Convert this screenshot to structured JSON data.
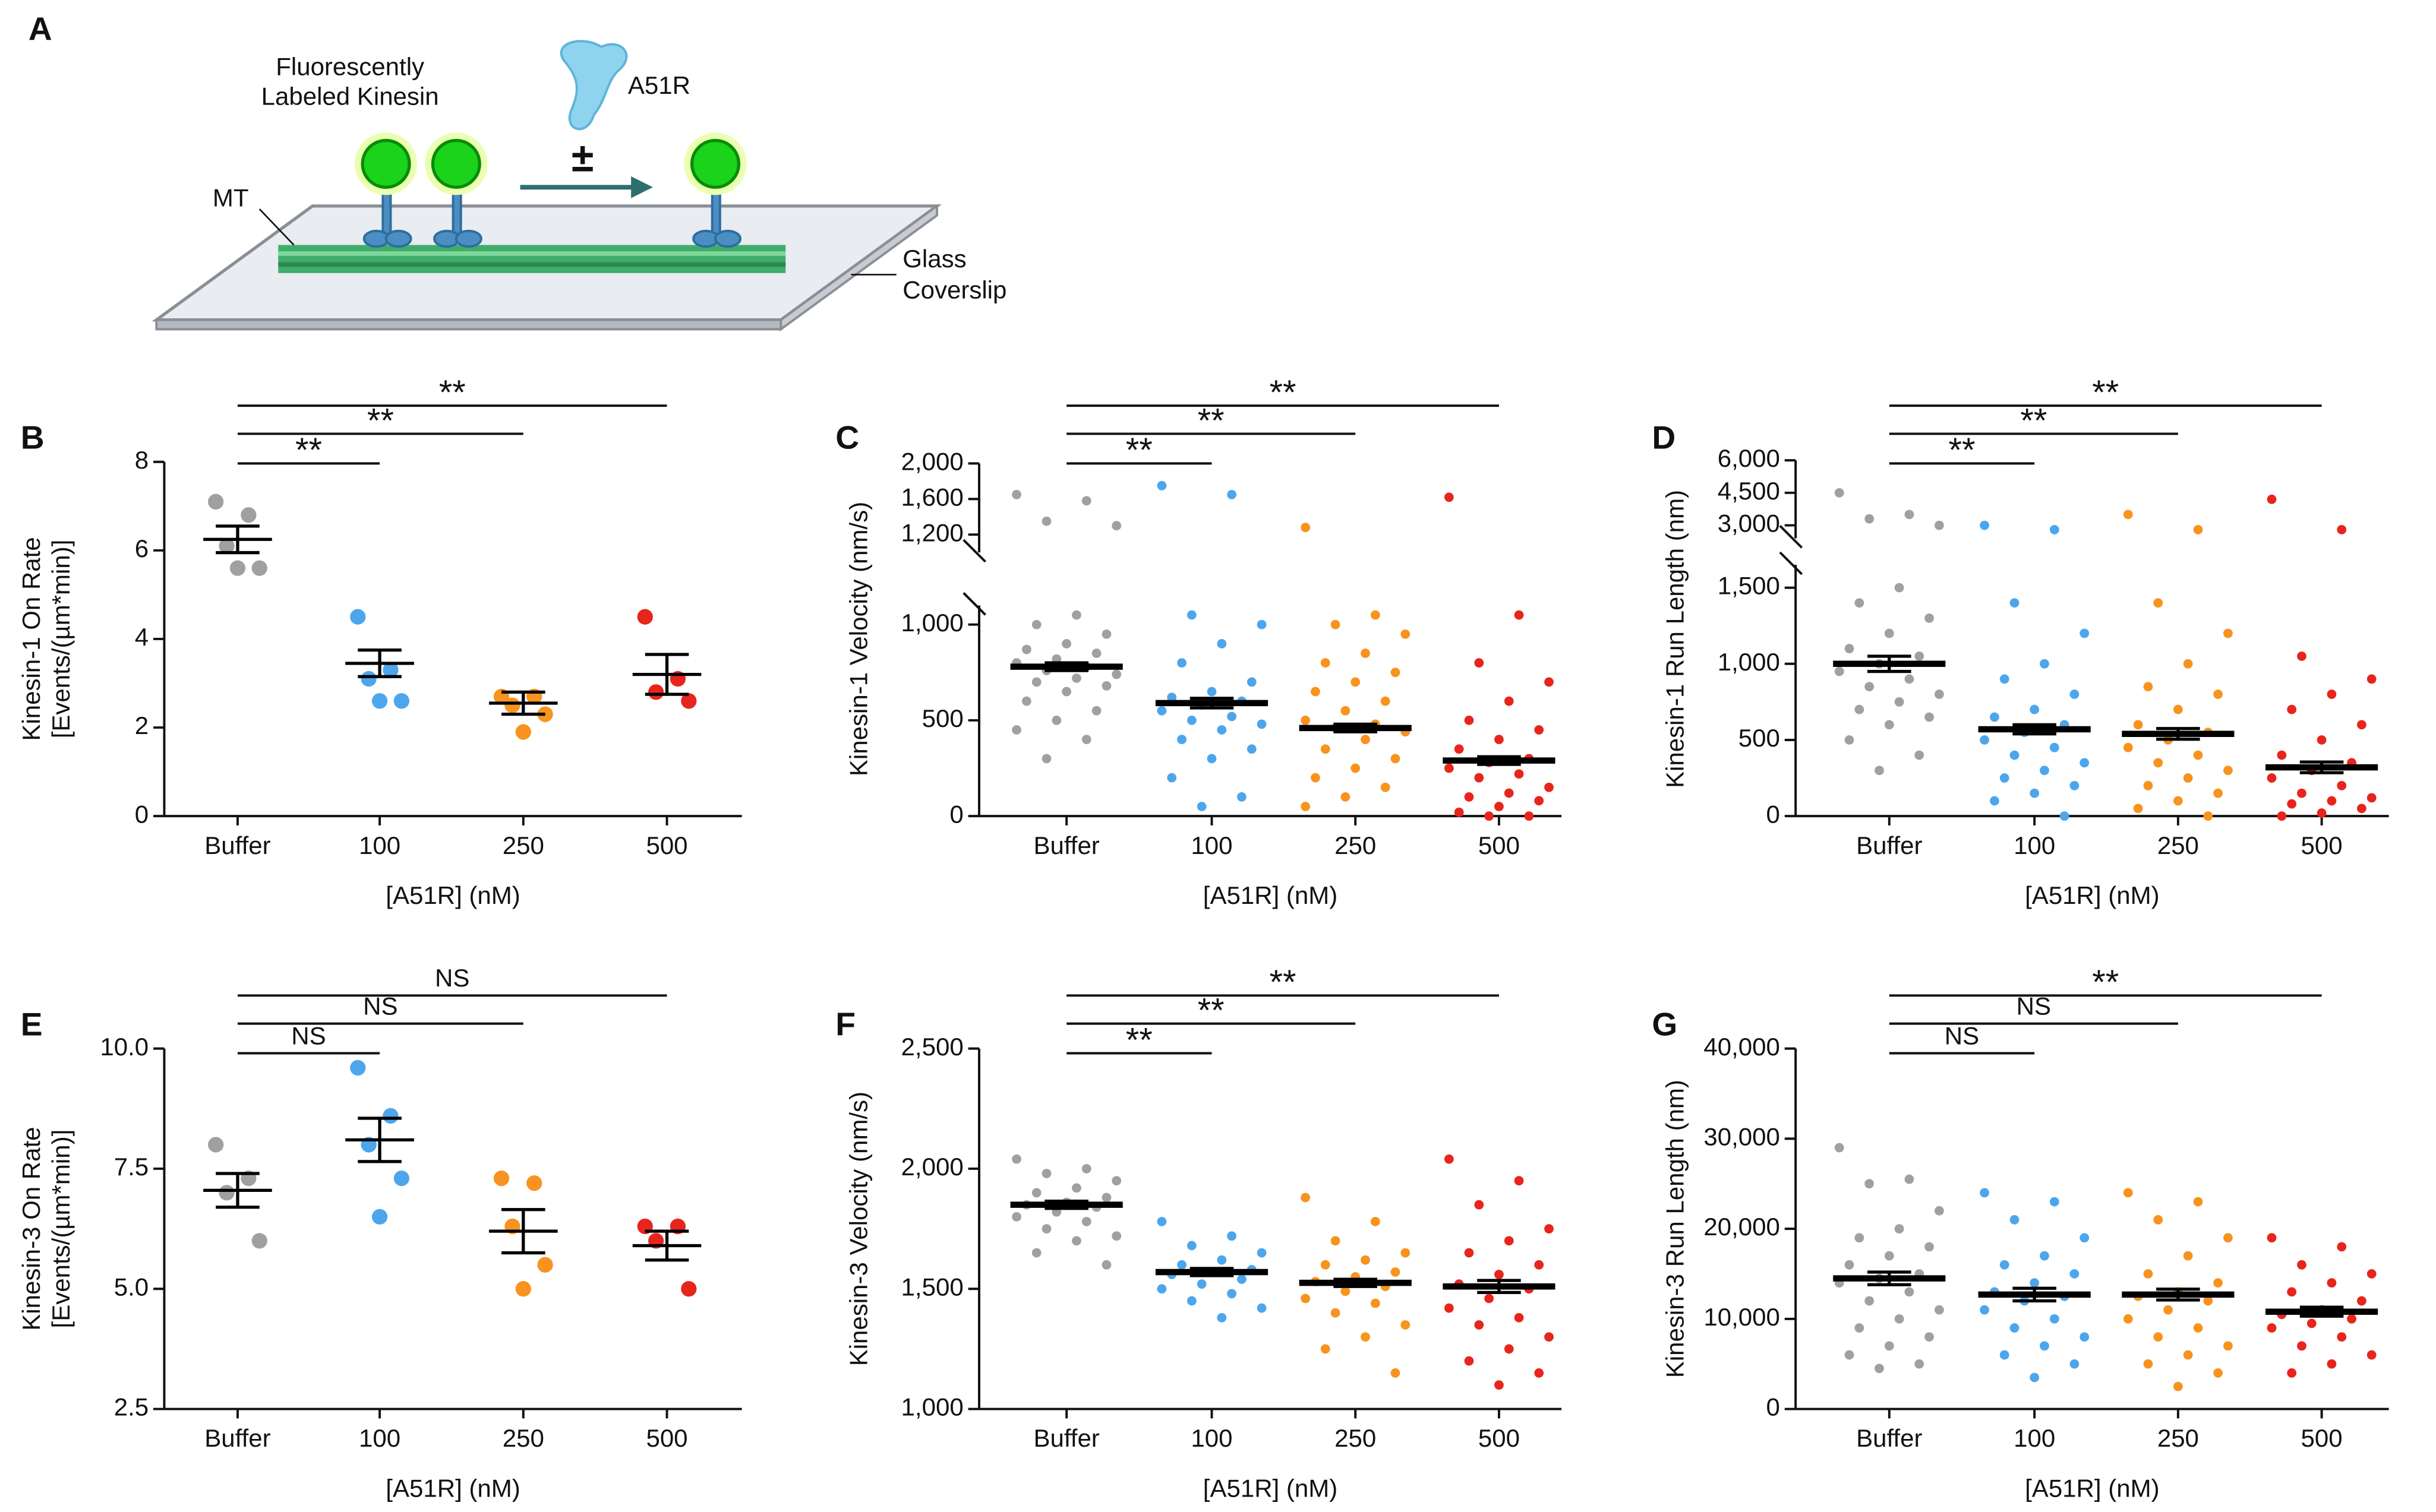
{
  "diagram": {
    "panel": "A",
    "kinesin_label": [
      "Fluorescently",
      "Labeled Kinesin"
    ],
    "protein": "A51R",
    "symbol": "±",
    "mt": "MT",
    "glass": [
      "Glass",
      "Coverslip"
    ]
  },
  "chart_data": [
    {
      "type": "dot",
      "panel": "B",
      "ylabel": [
        "Kinesin-1 On Rate",
        "[Events/(µm*min)]"
      ],
      "xlabel": "[A51R] (nM)",
      "categories": [
        "Buffer",
        "100",
        "250",
        "500"
      ],
      "colors": [
        "#a0a0a0",
        "#4da6ec",
        "#f7931e",
        "#e8251c"
      ],
      "points": [
        [
          7.1,
          6.8,
          6.1,
          5.6,
          5.6
        ],
        [
          4.5,
          3.3,
          3.1,
          2.6,
          2.6
        ],
        [
          2.7,
          2.7,
          2.5,
          2.3,
          1.9
        ],
        [
          4.5,
          3.1,
          2.8,
          2.6
        ]
      ],
      "means": [
        6.25,
        3.45,
        2.55,
        3.2
      ],
      "sem": [
        0.3,
        0.3,
        0.25,
        0.45
      ],
      "ylim": [
        0,
        8
      ],
      "yticks": [
        0,
        2,
        4,
        6,
        8
      ],
      "significance": [
        "**",
        "**",
        "**"
      ]
    },
    {
      "type": "dot",
      "panel": "C",
      "ylabel": [
        "Kinesin-1 Velocity (nm/s)"
      ],
      "xlabel": "[A51R] (nM)",
      "categories": [
        "Buffer",
        "100",
        "250",
        "500"
      ],
      "colors": [
        "#a0a0a0",
        "#4da6ec",
        "#f7931e",
        "#e8251c"
      ],
      "points": [
        [
          1650,
          1580,
          1350,
          1300,
          1050,
          1000,
          950,
          900,
          870,
          850,
          820,
          800,
          780,
          760,
          740,
          720,
          700,
          680,
          650,
          600,
          550,
          500,
          450,
          400,
          300
        ],
        [
          1750,
          1650,
          1050,
          1000,
          900,
          800,
          700,
          650,
          620,
          600,
          580,
          550,
          520,
          500,
          480,
          450,
          400,
          350,
          300,
          200,
          100,
          50
        ],
        [
          1280,
          1050,
          1000,
          950,
          850,
          800,
          750,
          700,
          650,
          600,
          550,
          500,
          480,
          460,
          440,
          400,
          350,
          300,
          250,
          200,
          150,
          100,
          50
        ],
        [
          1620,
          1050,
          800,
          700,
          600,
          500,
          450,
          400,
          350,
          300,
          280,
          250,
          220,
          200,
          150,
          120,
          100,
          80,
          50,
          20,
          0,
          0
        ]
      ],
      "means": [
        780,
        590,
        460,
        290
      ],
      "sem": [
        20,
        25,
        20,
        20
      ],
      "segments": [
        {
          "ylim": [
            0,
            1100
          ],
          "yticks": [
            0,
            500,
            {
              "value": 1000,
              "label": "1,000"
            }
          ]
        },
        {
          "ylim": [
            1000,
            2000
          ],
          "yticks": [
            {
              "value": 1200,
              "label": "1,200"
            },
            {
              "value": 1600,
              "label": "1,600"
            },
            {
              "value": 2000,
              "label": "2,000"
            }
          ]
        }
      ],
      "significance": [
        "**",
        "**",
        "**"
      ]
    },
    {
      "type": "dot",
      "panel": "D",
      "ylabel": [
        "Kinesin-1 Run Length (nm)"
      ],
      "xlabel": "[A51R] (nM)",
      "categories": [
        "Buffer",
        "100",
        "250",
        "500"
      ],
      "colors": [
        "#a0a0a0",
        "#4da6ec",
        "#f7931e",
        "#e8251c"
      ],
      "points": [
        [
          4500,
          3500,
          3300,
          3000,
          1500,
          1400,
          1300,
          1200,
          1100,
          1050,
          1000,
          950,
          900,
          850,
          800,
          750,
          700,
          650,
          600,
          500,
          400,
          300
        ],
        [
          3000,
          2800,
          1400,
          1200,
          1000,
          900,
          800,
          700,
          650,
          600,
          550,
          500,
          450,
          400,
          350,
          300,
          250,
          200,
          150,
          100,
          0
        ],
        [
          3500,
          2800,
          1400,
          1200,
          1000,
          850,
          800,
          700,
          600,
          550,
          500,
          450,
          400,
          350,
          300,
          250,
          200,
          150,
          100,
          50,
          0
        ],
        [
          4200,
          2800,
          1050,
          900,
          800,
          700,
          600,
          500,
          400,
          350,
          300,
          250,
          200,
          150,
          120,
          100,
          80,
          50,
          20,
          0
        ]
      ],
      "means": [
        1000,
        570,
        540,
        320
      ],
      "sem": [
        50,
        30,
        35,
        35
      ],
      "segments": [
        {
          "ylim": [
            0,
            1650
          ],
          "yticks": [
            0,
            500,
            {
              "value": 1000,
              "label": "1,000"
            },
            {
              "value": 1500,
              "label": "1,500"
            }
          ]
        },
        {
          "ylim": [
            2400,
            6000
          ],
          "yticks": [
            {
              "value": 3000,
              "label": "3,000"
            },
            {
              "value": 4500,
              "label": "4,500"
            },
            {
              "value": 6000,
              "label": "6,000"
            }
          ]
        }
      ],
      "significance": [
        "**",
        "**",
        "**"
      ]
    },
    {
      "type": "dot",
      "panel": "E",
      "ylabel": [
        "Kinesin-3 On Rate",
        "[Events/(µm*min)]"
      ],
      "xlabel": "[A51R] (nM)",
      "categories": [
        "Buffer",
        "100",
        "250",
        "500"
      ],
      "colors": [
        "#a0a0a0",
        "#4da6ec",
        "#f7931e",
        "#e8251c"
      ],
      "points": [
        [
          8.0,
          7.3,
          7.0,
          6.0
        ],
        [
          9.6,
          8.6,
          8.0,
          7.3,
          6.5
        ],
        [
          7.3,
          7.2,
          6.3,
          5.5,
          5.0
        ],
        [
          6.3,
          6.3,
          6.0,
          5.0
        ]
      ],
      "means": [
        7.05,
        8.1,
        6.2,
        5.9
      ],
      "sem": [
        0.35,
        0.45,
        0.45,
        0.3
      ],
      "ylim": [
        2.5,
        10
      ],
      "yticks": [
        {
          "value": 2.5,
          "label": "2.5"
        },
        {
          "value": 5,
          "label": "5.0"
        },
        {
          "value": 7.5,
          "label": "7.5"
        },
        {
          "value": 10,
          "label": "10.0"
        }
      ],
      "significance": [
        "NS",
        "NS",
        "NS"
      ]
    },
    {
      "type": "dot",
      "panel": "F",
      "ylabel": [
        "Kinesin-3 Velocity (nm/s)"
      ],
      "xlabel": "[A51R] (nM)",
      "categories": [
        "Buffer",
        "100",
        "250",
        "500"
      ],
      "colors": [
        "#a0a0a0",
        "#4da6ec",
        "#f7931e",
        "#e8251c"
      ],
      "points": [
        [
          2040,
          2000,
          1980,
          1950,
          1920,
          1900,
          1880,
          1860,
          1850,
          1840,
          1820,
          1800,
          1780,
          1750,
          1720,
          1700,
          1650,
          1600
        ],
        [
          1780,
          1720,
          1680,
          1650,
          1620,
          1600,
          1580,
          1570,
          1560,
          1540,
          1520,
          1500,
          1480,
          1450,
          1420,
          1380
        ],
        [
          1880,
          1780,
          1700,
          1650,
          1620,
          1600,
          1570,
          1550,
          1530,
          1510,
          1490,
          1460,
          1440,
          1400,
          1350,
          1300,
          1250,
          1150
        ],
        [
          2040,
          1950,
          1850,
          1750,
          1700,
          1650,
          1600,
          1560,
          1520,
          1500,
          1460,
          1420,
          1380,
          1350,
          1300,
          1250,
          1200,
          1150,
          1100
        ]
      ],
      "means": [
        1850,
        1570,
        1525,
        1510
      ],
      "sem": [
        15,
        15,
        15,
        25
      ],
      "ylim": [
        1000,
        2500
      ],
      "yticks": [
        {
          "value": 1000,
          "label": "1,000"
        },
        {
          "value": 1500,
          "label": "1,500"
        },
        {
          "value": 2000,
          "label": "2,000"
        },
        {
          "value": 2500,
          "label": "2,500"
        }
      ],
      "significance": [
        "**",
        "**",
        "**"
      ]
    },
    {
      "type": "dot",
      "panel": "G",
      "ylabel": [
        "Kinesin-3 Run Length (nm)"
      ],
      "xlabel": "[A51R] (nM)",
      "categories": [
        "Buffer",
        "100",
        "250",
        "500"
      ],
      "colors": [
        "#a0a0a0",
        "#4da6ec",
        "#f7931e",
        "#e8251c"
      ],
      "points": [
        [
          29000,
          25500,
          25000,
          22000,
          20000,
          19000,
          18000,
          17000,
          16000,
          15000,
          14500,
          14000,
          13000,
          12000,
          11000,
          10000,
          9000,
          8000,
          7000,
          6000,
          5000,
          4500
        ],
        [
          24000,
          23000,
          21000,
          19000,
          17000,
          16000,
          15000,
          14000,
          13000,
          12500,
          12000,
          11000,
          10000,
          9000,
          8000,
          7000,
          6000,
          5000,
          3500
        ],
        [
          24000,
          23000,
          21000,
          19000,
          17000,
          15000,
          14000,
          13000,
          12500,
          12000,
          11000,
          10000,
          9000,
          8000,
          7000,
          6000,
          5000,
          4000,
          2500
        ],
        [
          19000,
          18000,
          16000,
          15000,
          14000,
          13000,
          12000,
          11000,
          10500,
          10000,
          9500,
          9000,
          8000,
          7000,
          6000,
          5000,
          4000
        ]
      ],
      "means": [
        14500,
        12700,
        12700,
        10800
      ],
      "sem": [
        700,
        700,
        600,
        500
      ],
      "ylim": [
        0,
        40000
      ],
      "yticks": [
        0,
        {
          "value": 10000,
          "label": "10,000"
        },
        {
          "value": 20000,
          "label": "20,000"
        },
        {
          "value": 30000,
          "label": "30,000"
        },
        {
          "value": 40000,
          "label": "40,000"
        }
      ],
      "significance": [
        "NS",
        "NS",
        "**"
      ]
    }
  ]
}
